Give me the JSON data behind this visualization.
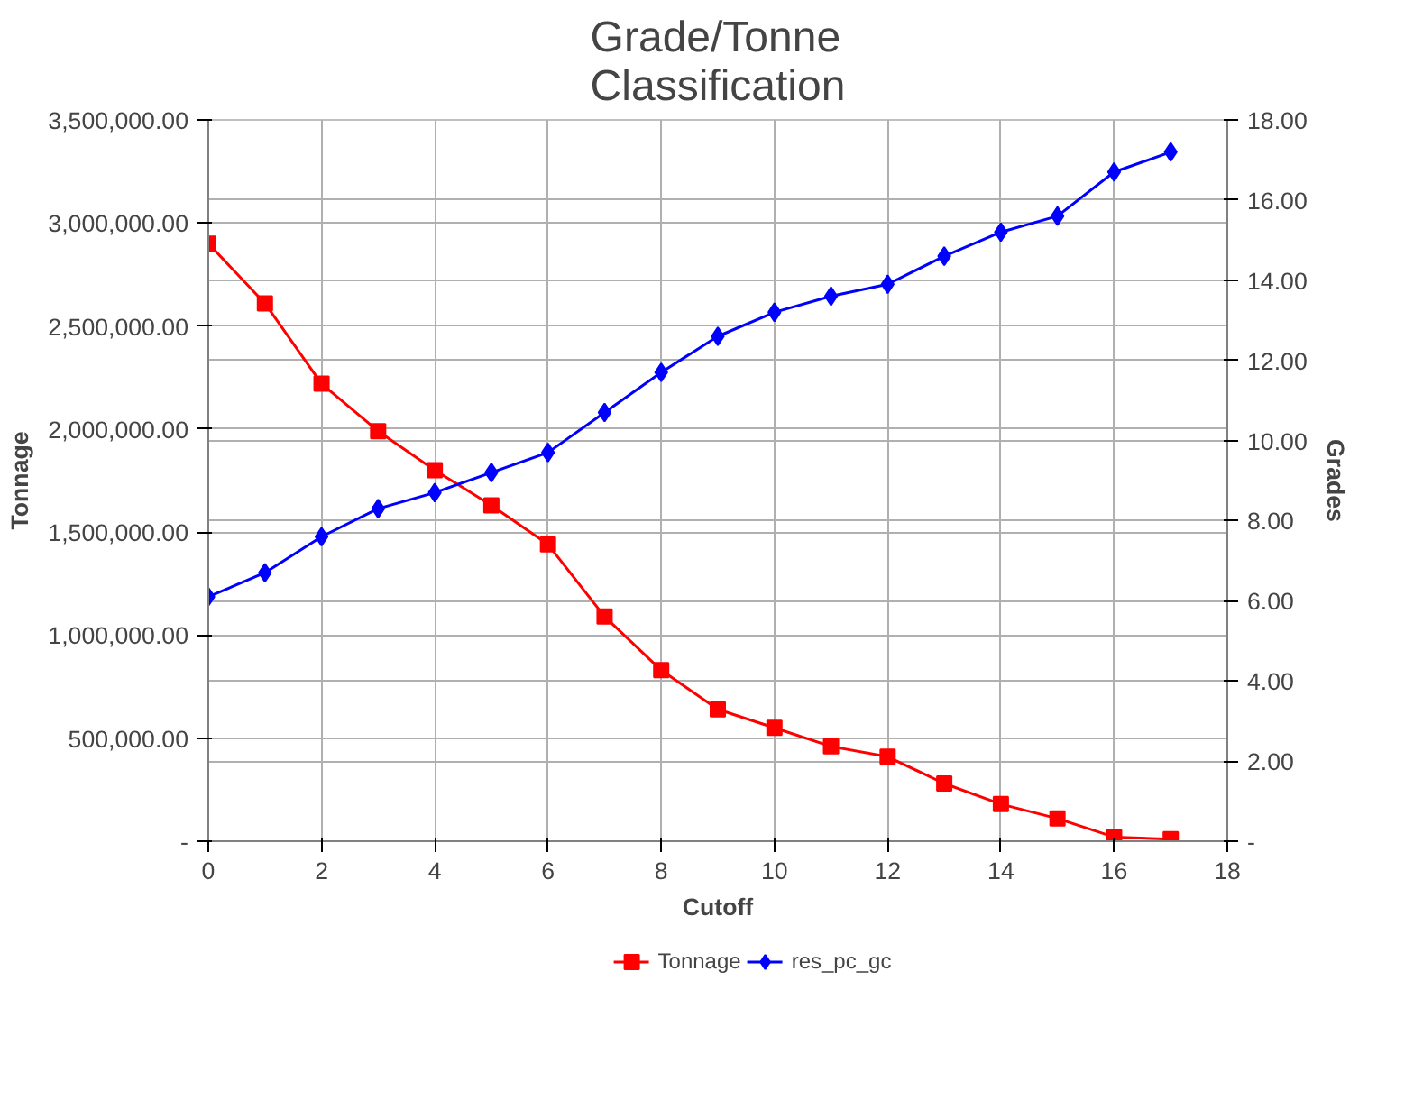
{
  "chart_data": {
    "type": "line",
    "title": "Grade/Tonne\nClassification",
    "xlabel": "Cutoff",
    "ylabel": "Tonnage",
    "y2label": "Grades",
    "x": [
      0,
      1,
      2,
      3,
      4,
      5,
      6,
      7,
      8,
      9,
      10,
      11,
      12,
      13,
      14,
      15,
      16,
      17
    ],
    "series": [
      {
        "name": "Tonnage",
        "color": "#ff0000",
        "marker": "square",
        "values": [
          2900000,
          2610000,
          2220000,
          1990000,
          1800000,
          1630000,
          1440000,
          1090000,
          830000,
          640000,
          550000,
          460000,
          410000,
          280000,
          180000,
          110000,
          20000,
          10000
        ]
      },
      {
        "name": "res_pc_gc",
        "color": "#0000ff",
        "marker": "diamond",
        "axis": "y2",
        "values": [
          6.1,
          6.7,
          7.6,
          8.3,
          8.7,
          9.2,
          9.7,
          10.7,
          11.7,
          12.6,
          13.2,
          13.6,
          13.9,
          14.6,
          15.2,
          15.6,
          16.7,
          17.2
        ]
      }
    ],
    "xlim": [
      0,
      18
    ],
    "xticks": [
      0,
      2,
      4,
      6,
      8,
      10,
      12,
      14,
      16,
      18
    ],
    "ylim": [
      0,
      3500000
    ],
    "yticks": [
      {
        "value": 0,
        "label": "-"
      },
      {
        "value": 500000,
        "label": "500,000.00"
      },
      {
        "value": 1000000,
        "label": "1,000,000.00"
      },
      {
        "value": 1500000,
        "label": "1,500,000.00"
      },
      {
        "value": 2000000,
        "label": "2,000,000.00"
      },
      {
        "value": 2500000,
        "label": "2,500,000.00"
      },
      {
        "value": 3000000,
        "label": "3,000,000.00"
      },
      {
        "value": 3500000,
        "label": "3,500,000.00"
      }
    ],
    "y2lim": [
      0,
      18
    ],
    "y2ticks": [
      {
        "value": 0,
        "label": "-"
      },
      {
        "value": 2,
        "label": "2.00"
      },
      {
        "value": 4,
        "label": "4.00"
      },
      {
        "value": 6,
        "label": "6.00"
      },
      {
        "value": 8,
        "label": "8.00"
      },
      {
        "value": 10,
        "label": "10.00"
      },
      {
        "value": 12,
        "label": "12.00"
      },
      {
        "value": 14,
        "label": "14.00"
      },
      {
        "value": 16,
        "label": "16.00"
      },
      {
        "value": 18,
        "label": "18.00"
      }
    ],
    "grid": true,
    "legend": "bottom",
    "line_style": "solid"
  }
}
